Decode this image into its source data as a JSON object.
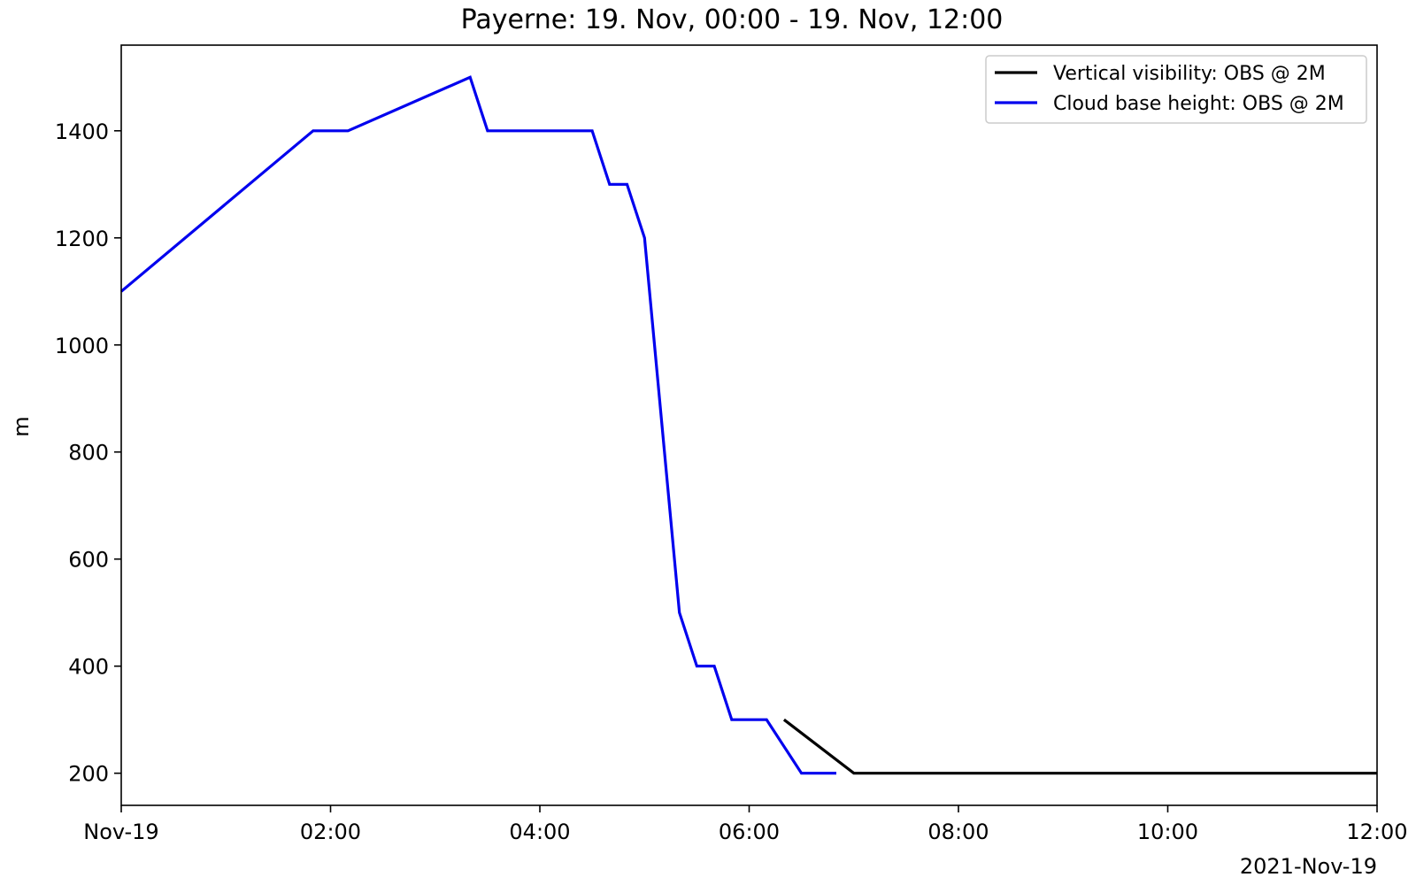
{
  "chart_data": {
    "type": "line",
    "title": "Payerne: 19. Nov, 00:00 - 19. Nov, 12:00",
    "xlabel": "",
    "ylabel": "m",
    "x_offset_label": "2021-Nov-19",
    "xlim": [
      "2021-11-19T00:00",
      "2021-11-19T12:00"
    ],
    "ylim": [
      140,
      1560
    ],
    "x_ticks": [
      {
        "value": "2021-11-19T00:00",
        "label": "Nov-19"
      },
      {
        "value": "2021-11-19T02:00",
        "label": "02:00"
      },
      {
        "value": "2021-11-19T04:00",
        "label": "04:00"
      },
      {
        "value": "2021-11-19T06:00",
        "label": "06:00"
      },
      {
        "value": "2021-11-19T08:00",
        "label": "08:00"
      },
      {
        "value": "2021-11-19T10:00",
        "label": "10:00"
      },
      {
        "value": "2021-11-19T12:00",
        "label": "12:00"
      }
    ],
    "y_ticks": [
      {
        "value": 200,
        "label": "200"
      },
      {
        "value": 400,
        "label": "400"
      },
      {
        "value": 600,
        "label": "600"
      },
      {
        "value": 800,
        "label": "800"
      },
      {
        "value": 1000,
        "label": "1000"
      },
      {
        "value": 1200,
        "label": "1200"
      },
      {
        "value": 1400,
        "label": "1400"
      }
    ],
    "grid": false,
    "legend": "top-right",
    "series": [
      {
        "name": "Vertical visibility: OBS @ 2M",
        "color": "#000000",
        "points": [
          {
            "x": "2021-11-19T06:20",
            "y": 300
          },
          {
            "x": "2021-11-19T07:00",
            "y": 200
          },
          {
            "x": "2021-11-19T12:00",
            "y": 200
          }
        ]
      },
      {
        "name": "Cloud base height: OBS @ 2M",
        "color": "#0000ee",
        "points": [
          {
            "x": "2021-11-19T00:00",
            "y": 1100
          },
          {
            "x": "2021-11-19T01:50",
            "y": 1400
          },
          {
            "x": "2021-11-19T02:10",
            "y": 1400
          },
          {
            "x": "2021-11-19T03:20",
            "y": 1500
          },
          {
            "x": "2021-11-19T03:30",
            "y": 1400
          },
          {
            "x": "2021-11-19T04:30",
            "y": 1400
          },
          {
            "x": "2021-11-19T04:40",
            "y": 1300
          },
          {
            "x": "2021-11-19T04:50",
            "y": 1300
          },
          {
            "x": "2021-11-19T05:00",
            "y": 1200
          },
          {
            "x": "2021-11-19T05:20",
            "y": 500
          },
          {
            "x": "2021-11-19T05:30",
            "y": 400
          },
          {
            "x": "2021-11-19T05:40",
            "y": 400
          },
          {
            "x": "2021-11-19T05:50",
            "y": 300
          },
          {
            "x": "2021-11-19T06:10",
            "y": 300
          },
          {
            "x": "2021-11-19T06:30",
            "y": 200
          },
          {
            "x": "2021-11-19T06:50",
            "y": 200
          }
        ]
      }
    ]
  }
}
